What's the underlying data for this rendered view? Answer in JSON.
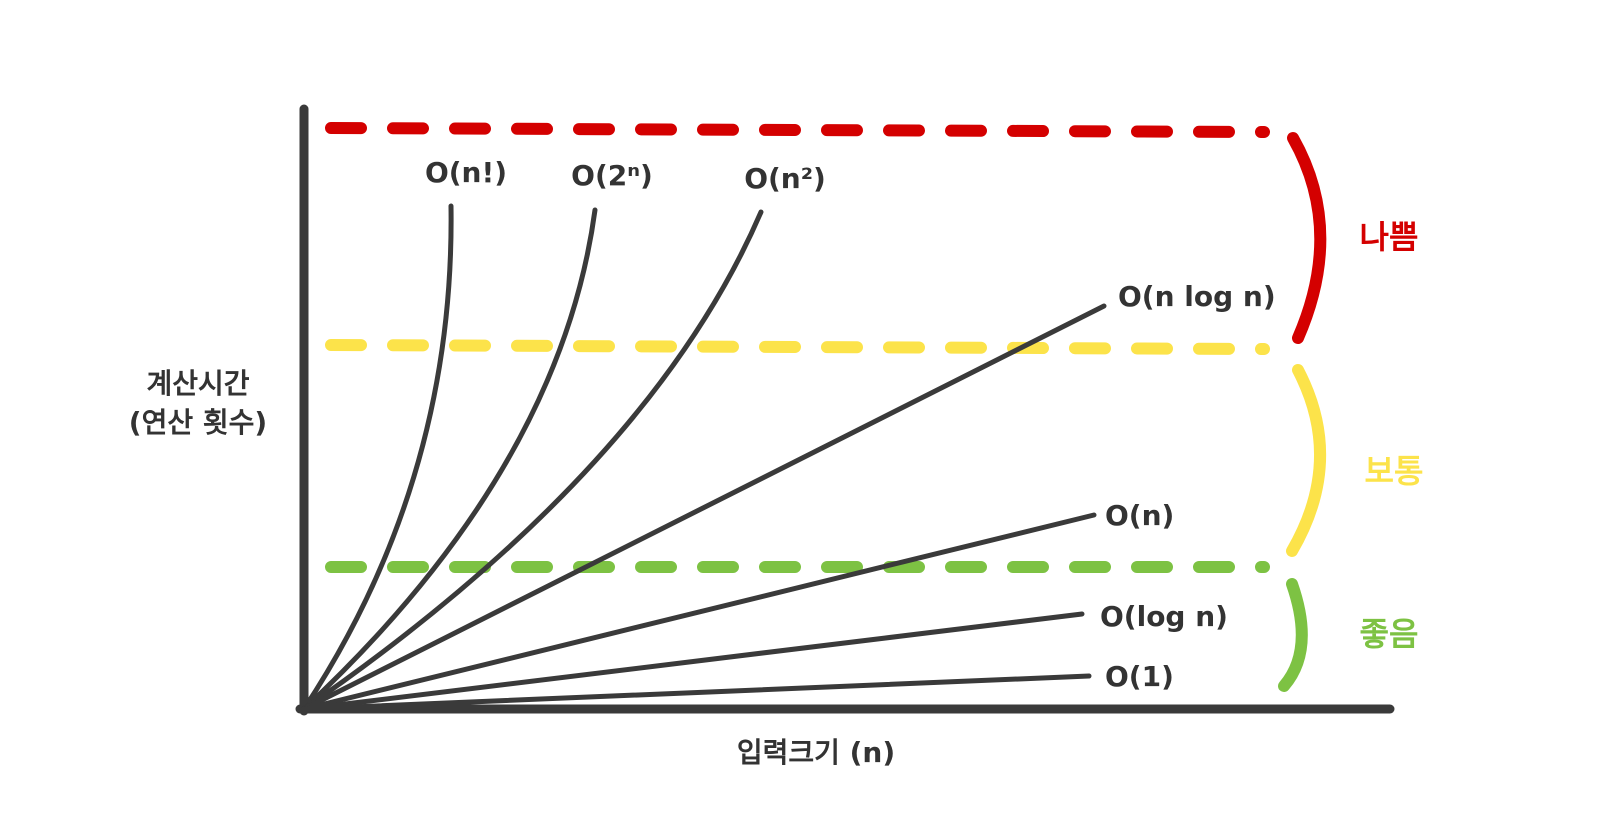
{
  "y_axis_label": [
    "계산시간",
    "(연산 횟수)"
  ],
  "x_axis_label": "입력크기 (n)",
  "curves": [
    {
      "label": "O(n!)"
    },
    {
      "label": "O(2ⁿ)"
    },
    {
      "label": "O(n²)"
    },
    {
      "label": "O(n log n)"
    },
    {
      "label": "O(n)"
    },
    {
      "label": "O(log n)"
    },
    {
      "label": "O(1)"
    }
  ],
  "zones": [
    {
      "label": "나쁨"
    },
    {
      "label": "보통"
    },
    {
      "label": "좋음"
    }
  ]
}
